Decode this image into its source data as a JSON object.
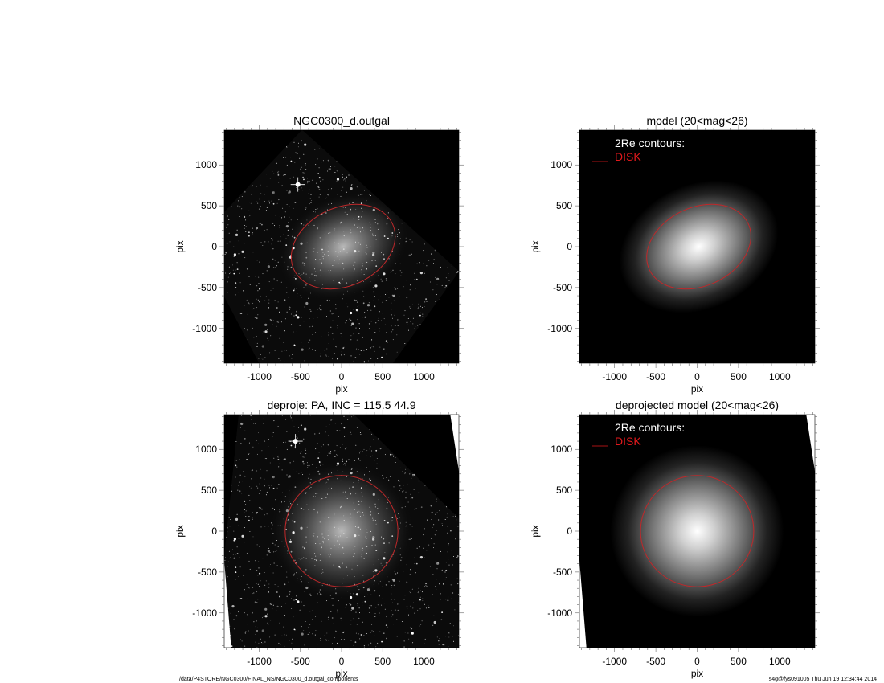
{
  "chart_data": [
    {
      "type": "heatmap",
      "title": "NGC0300_d.outgal",
      "xlabel": "pix",
      "ylabel": "pix",
      "xlim": [
        -1425,
        1425
      ],
      "ylim": [
        -1425,
        1425
      ],
      "xticks": [
        "-1000",
        "-500",
        "0",
        "500",
        "1000"
      ],
      "yticks": [
        "-1000",
        "-500",
        "0",
        "500",
        "1000"
      ],
      "image": "galaxy",
      "contour": {
        "shape": "ellipse",
        "center": [
          20,
          0
        ],
        "semi_major": 660,
        "semi_minor": 480,
        "angle_deg": 25,
        "color": "#c0282a"
      }
    },
    {
      "type": "heatmap",
      "title": "model (20<mag<26)",
      "xlabel": "pix",
      "ylabel": "pix",
      "xlim": [
        -1425,
        1425
      ],
      "ylim": [
        -1425,
        1425
      ],
      "xticks": [
        "-1000",
        "-500",
        "0",
        "500",
        "1000"
      ],
      "yticks": [
        "-1000",
        "-500",
        "0",
        "500",
        "1000"
      ],
      "image": "model",
      "legend": {
        "heading": "2Re contours:",
        "entries": [
          {
            "label": "DISK",
            "color": "#e0191c"
          }
        ],
        "placement": "top-left"
      },
      "contour": {
        "shape": "ellipse",
        "center": [
          20,
          0
        ],
        "semi_major": 660,
        "semi_minor": 480,
        "angle_deg": 25,
        "color": "#c0282a"
      }
    },
    {
      "type": "heatmap",
      "title": "deproje: PA, INC = 115.5    44.9",
      "xlabel": "pix",
      "ylabel": "pix",
      "xlim": [
        -1425,
        1425
      ],
      "ylim": [
        -1425,
        1425
      ],
      "xticks": [
        "-1000",
        "-500",
        "0",
        "500",
        "1000"
      ],
      "yticks": [
        "-1000",
        "-500",
        "0",
        "500",
        "1000"
      ],
      "image": "galaxy-deprojected",
      "contour": {
        "shape": "ellipse",
        "center": [
          0,
          0
        ],
        "semi_major": 685,
        "semi_minor": 680,
        "angle_deg": 0,
        "color": "#c0282a"
      }
    },
    {
      "type": "heatmap",
      "title": "deprojected model (20<mag<26)",
      "xlabel": "pix",
      "ylabel": "pix",
      "xlim": [
        -1425,
        1425
      ],
      "ylim": [
        -1425,
        1425
      ],
      "xticks": [
        "-1000",
        "-500",
        "0",
        "500",
        "1000"
      ],
      "yticks": [
        "-1000",
        "-500",
        "0",
        "500",
        "1000"
      ],
      "image": "model-deprojected",
      "legend": {
        "heading": "2Re contours:",
        "entries": [
          {
            "label": "DISK",
            "color": "#e0191c"
          }
        ],
        "placement": "top-left"
      },
      "contour": {
        "shape": "ellipse",
        "center": [
          0,
          0
        ],
        "semi_major": 685,
        "semi_minor": 680,
        "angle_deg": 0,
        "color": "#c0282a"
      }
    }
  ],
  "footer": {
    "path": "/data/P4STORE/NGC0300/FINAL_NS/NGC0300_d.outgal_components",
    "stamp": "s4g@fys091005  Thu Jun 19 12:34:44 2014"
  }
}
